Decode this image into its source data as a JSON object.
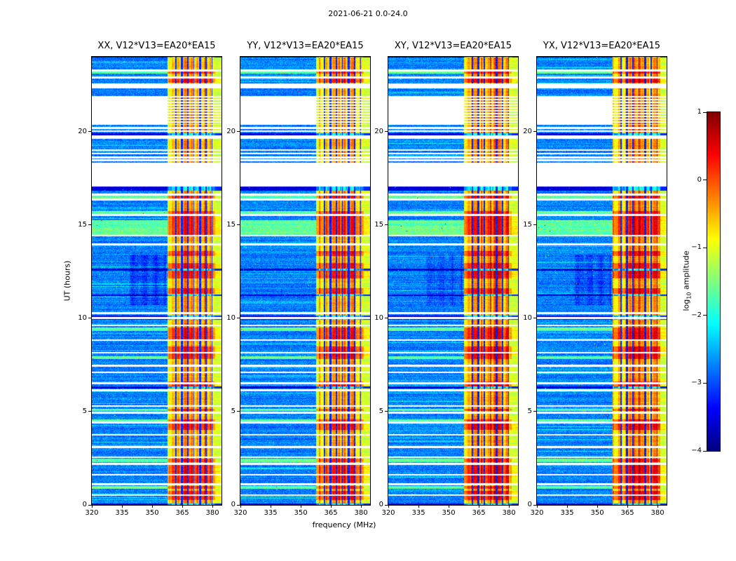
{
  "colors": {
    "background": "#ffffff",
    "axes": "#000000"
  },
  "chart_data": {
    "type": "heatmap",
    "title": "2021-06-21 0.0-24.0",
    "xlabel": "frequency (MHz)",
    "ylabel": "UT (hours)",
    "x_range": [
      320,
      384.5
    ],
    "y_range": [
      0,
      24
    ],
    "x_ticks": [
      "320",
      "335",
      "350",
      "365",
      "380"
    ],
    "y_ticks": [
      "0",
      "5",
      "10",
      "15",
      "20"
    ],
    "grid": false,
    "colormap": "jet",
    "panels": [
      {
        "id": "XX",
        "title": "XX, V12*V13=EA20*EA15",
        "smudge": 0.33
      },
      {
        "id": "YY",
        "title": "YY, V12*V13=EA20*EA15",
        "smudge": 0.08
      },
      {
        "id": "XY",
        "title": "XY, V12*V13=EA20*EA15",
        "smudge": 0.2
      },
      {
        "id": "YX",
        "title": "YX, V12*V13=EA20*EA15",
        "smudge": 0.28
      }
    ],
    "colorbar": {
      "label_pre": "log",
      "label_sub": "10",
      "label_post": " amplitude",
      "vmin": -4,
      "vmax": 1,
      "ticks": [
        {
          "v": 1,
          "label": "1"
        },
        {
          "v": 0,
          "label": "0"
        },
        {
          "v": -1,
          "label": "−1"
        },
        {
          "v": -2,
          "label": "−2"
        },
        {
          "v": -3,
          "label": "−3"
        },
        {
          "v": -4,
          "label": "−4"
        }
      ]
    },
    "features": {
      "band": {
        "start": 357.5,
        "stop": 381.5,
        "edge_stop": 384.5,
        "base_level": -0.85,
        "hot_level": -0.15,
        "channels": [
          [
            361.8,
            0.25
          ],
          [
            364.8,
            0.45
          ],
          [
            367.8,
            0.25
          ],
          [
            370.8,
            0.25
          ],
          [
            373.8,
            0.45
          ],
          [
            376.8,
            0.25
          ],
          [
            379.8,
            0.3
          ]
        ]
      },
      "full_gaps": [
        [
          17.05,
          18.32
        ],
        [
          19.62,
          19.78
        ],
        [
          22.3,
          22.56
        ]
      ],
      "partial_gaps": [
        [
          20.35,
          21.88
        ]
      ],
      "line_gaps": [
        23.28,
        22.9,
        20.18,
        20.02,
        19.0,
        18.82,
        18.6,
        18.45,
        16.62,
        16.35,
        15.52,
        14.42,
        13.95,
        10.28,
        10.02,
        9.62,
        8.82,
        8.15,
        7.45,
        7.1,
        6.52,
        6.15,
        5.3,
        4.95,
        4.42,
        3.75,
        3.1,
        2.55,
        2.2,
        1.62,
        1.12,
        0.52
      ],
      "dark_rows": [
        [
          23.95,
          24.0
        ],
        [
          19.78,
          19.92
        ],
        [
          16.82,
          17.05
        ],
        [
          12.55,
          12.64
        ],
        [
          11.18,
          11.28
        ],
        [
          9.9,
          10.14
        ],
        [
          6.25,
          6.35
        ],
        [
          0.0,
          0.06
        ]
      ],
      "green_rows": [
        [
          23.1,
          23.3
        ],
        [
          16.38,
          16.6
        ],
        [
          15.55,
          15.75
        ],
        [
          14.45,
          15.25
        ],
        [
          9.3,
          9.5
        ],
        [
          7.8,
          7.95
        ],
        [
          5.05,
          5.15
        ],
        [
          4.45,
          4.6
        ],
        [
          2.3,
          2.48
        ],
        [
          0.85,
          1.0
        ]
      ],
      "hot_band_rows": [
        [
          22.6,
          22.85
        ],
        [
          15.0,
          15.6
        ],
        [
          14.45,
          15.0
        ],
        [
          13.35,
          13.6
        ],
        [
          12.15,
          12.95
        ],
        [
          11.3,
          11.6
        ],
        [
          8.85,
          9.45
        ],
        [
          7.95,
          8.5
        ],
        [
          6.32,
          6.6
        ],
        [
          4.0,
          4.35
        ],
        [
          1.15,
          2.15
        ],
        [
          0.25,
          0.75
        ]
      ],
      "smudge": {
        "f": [
          339,
          357
        ],
        "t": [
          10.7,
          13.4
        ]
      }
    },
    "value_summary": {
      "background_level_log10amp": -2.75,
      "rfi_band_mhz": [
        357.5,
        381.5
      ],
      "rfi_band_level_log10amp": [
        -0.9,
        0.2
      ],
      "band_edge_mhz": [
        381.5,
        384.5
      ],
      "missing_data": "white horizontal stripes and blocks"
    }
  }
}
